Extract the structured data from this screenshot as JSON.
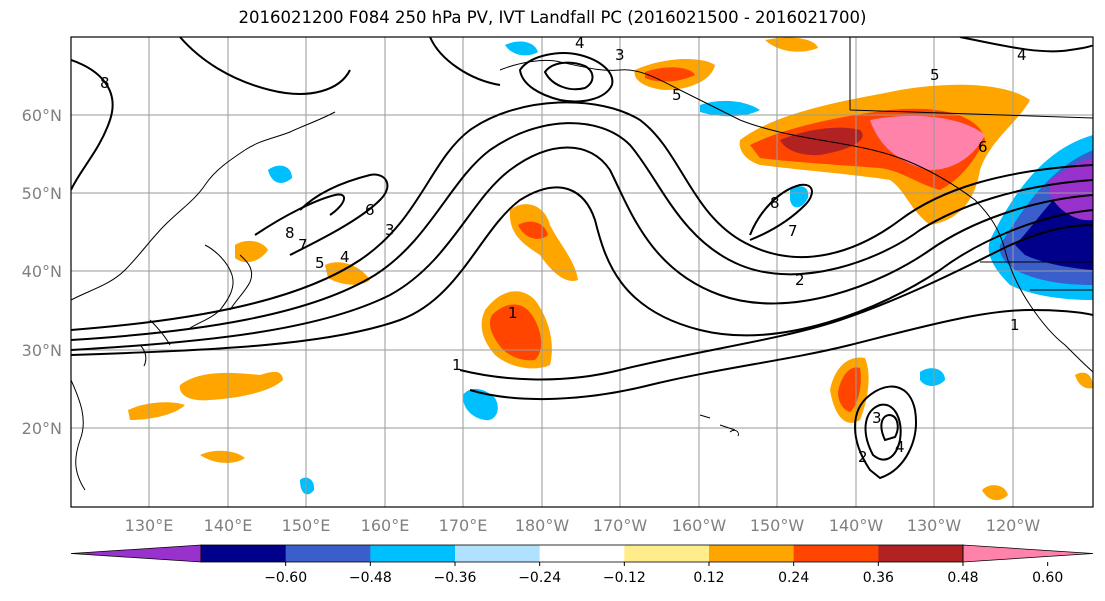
{
  "title": "2016021200 F084 250 hPa PV, IVT Landfall PC (2016021500 - 2016021700)",
  "map": {
    "lat_labels": [
      "60°N",
      "50°N",
      "40°N",
      "30°N",
      "20°N"
    ],
    "lon_labels": [
      "130°E",
      "140°E",
      "150°E",
      "160°E",
      "170°E",
      "180°W",
      "170°W",
      "160°W",
      "150°W",
      "140°W",
      "130°W",
      "120°W"
    ],
    "contour_labels": [
      "8",
      "4",
      "3",
      "5",
      "6",
      "7",
      "8",
      "5",
      "4",
      "3",
      "1",
      "8",
      "7",
      "2",
      "1",
      "6",
      "5",
      "4",
      "1",
      "3",
      "4",
      "2"
    ],
    "grid": true
  },
  "colorbar": {
    "ticks": [
      "−0.60",
      "−0.48",
      "−0.36",
      "−0.24",
      "−0.12",
      "0.12",
      "0.24",
      "0.36",
      "0.48",
      "0.60"
    ],
    "colors": [
      "#9932cc",
      "#00008b",
      "#3a5fcd",
      "#00bfff",
      "#b0e2ff",
      "#ffffff",
      "#ffec8b",
      "#ffa500",
      "#ff4500",
      "#b22222",
      "#ff82ab"
    ]
  }
}
